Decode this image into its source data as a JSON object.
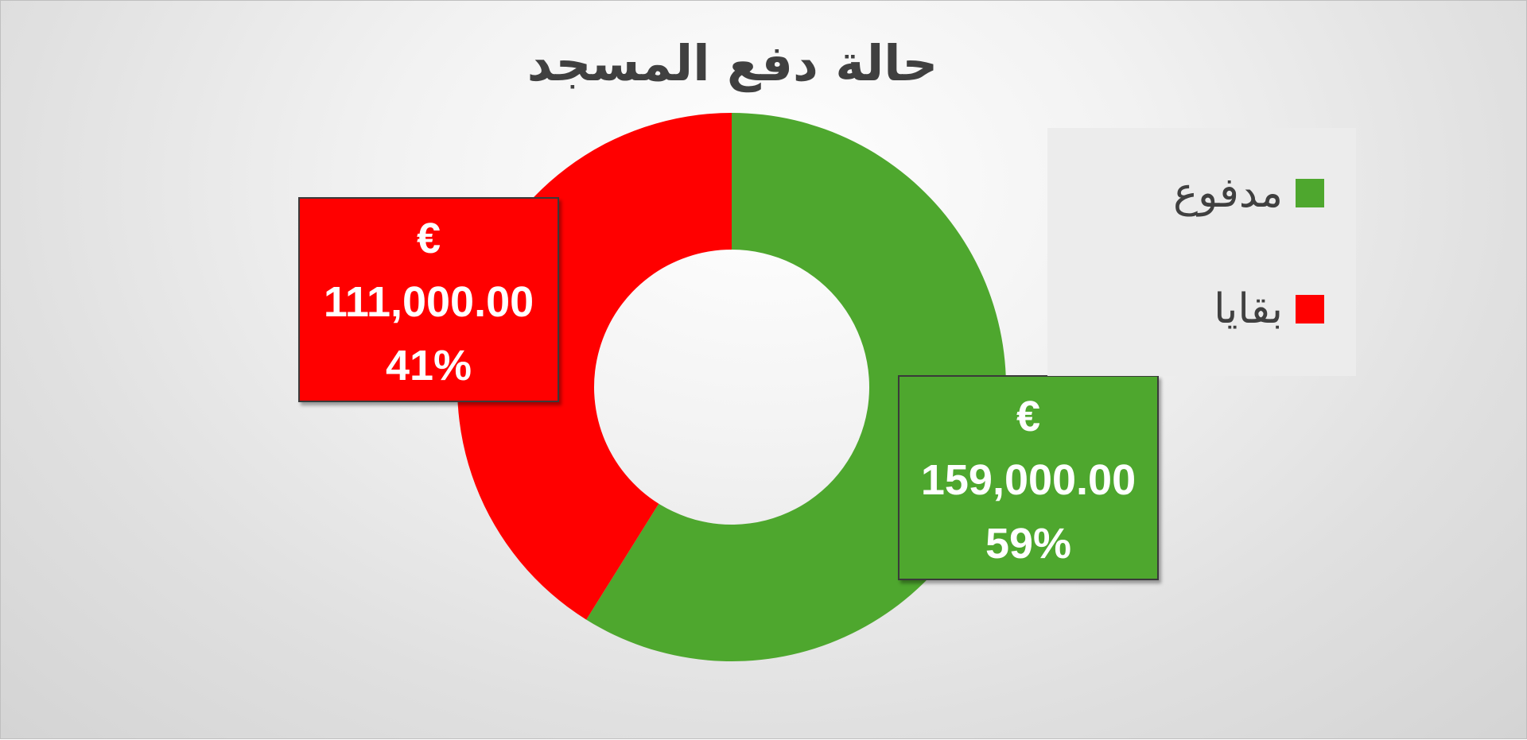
{
  "chart_data": {
    "type": "pie",
    "variant": "donut",
    "title": "حالة دفع المسجد",
    "slices": [
      {
        "name": "مدفوع",
        "value": 159000,
        "percent": 59,
        "color": "#4ea72e",
        "label_currency": "€",
        "label_value": "159,000.00",
        "label_percent": "59%"
      },
      {
        "name": "بقايا",
        "value": 111000,
        "percent": 41,
        "color": "#ff0000",
        "label_currency": "€",
        "label_value": "111,000.00",
        "label_percent": "41%"
      }
    ],
    "legend": {
      "placement": "right"
    }
  }
}
